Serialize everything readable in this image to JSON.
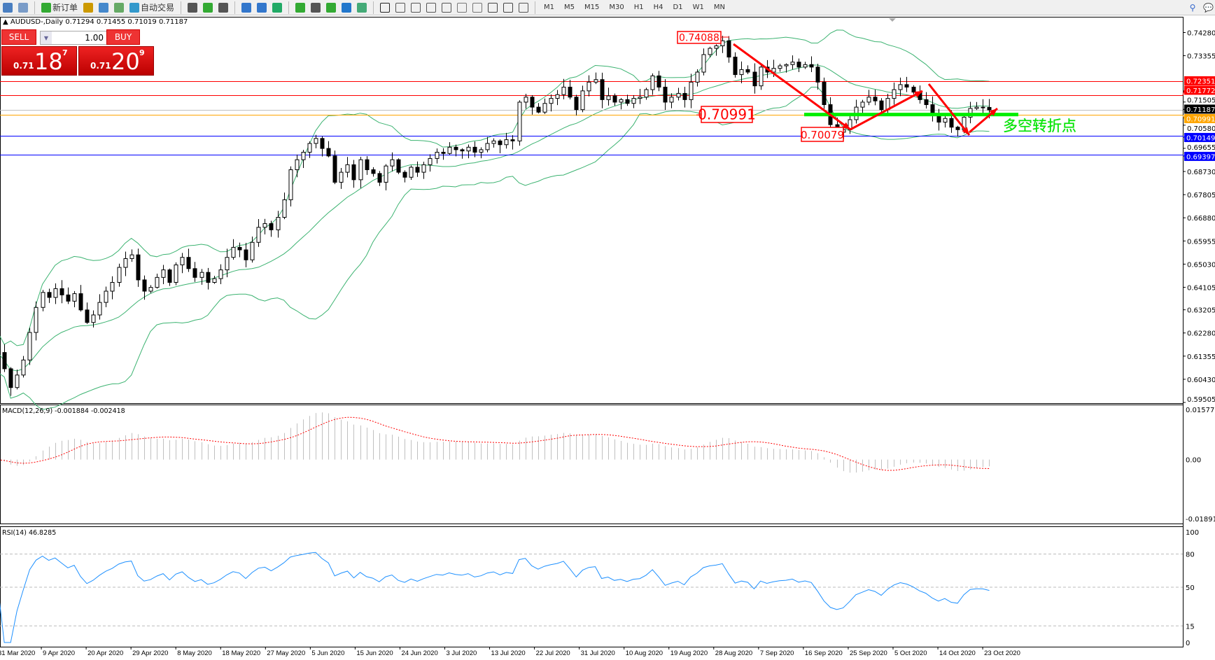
{
  "toolbar": {
    "new_order": "新订单",
    "auto_trading": "自动交易",
    "icons": [
      "new-chart-icon",
      "zoom-window-icon",
      "new-order-icon",
      "market-watch-icon",
      "navigator-icon",
      "signal-icon",
      "auto-trading-icon",
      "bar-chart-icon",
      "candlestick-icon",
      "line-chart-icon",
      "zoom-in-icon",
      "zoom-out-icon",
      "tile-windows-icon",
      "chart-shift-icon",
      "autoscroll-icon",
      "indicators-icon",
      "periods-icon",
      "templates-icon",
      "cursor-icon",
      "crosshair-icon",
      "vertical-line-icon",
      "horizontal-line-icon",
      "trendline-icon",
      "fibonacci-icon",
      "channel-icon",
      "text-icon",
      "text-label-icon",
      "arrow-icon"
    ],
    "timeframes": [
      "M1",
      "M5",
      "M15",
      "M30",
      "H1",
      "H4",
      "D1",
      "W1",
      "MN"
    ],
    "right_icons": [
      "search-icon",
      "chat-icon"
    ]
  },
  "chart": {
    "header": "AUDUSD-,Daily  0.71294 0.71455 0.71019 0.71187",
    "one_click": {
      "sell": "SELL",
      "buy": "BUY",
      "lot": "1.00",
      "sell_small": "0.71",
      "sell_big": "18",
      "sell_sup": "7",
      "buy_small": "0.71",
      "buy_big": "20",
      "buy_sup": "9"
    },
    "annotations": {
      "peak": "0.74088",
      "pivot": "0.70991",
      "low": "0.70079",
      "pivot_text": "多空转折点"
    },
    "colors": {
      "bull": "#ffffff",
      "bear": "#000000",
      "bands": "#3cb371",
      "resistance": "#ff0000",
      "support": "#0000ff",
      "pivot": "#ffa500",
      "bid": "#c0c0c0",
      "pivot_zone": "#00ee00",
      "arrow": "#ff0000",
      "rsi": "#1e90ff",
      "macd_hist": "#c0c0c0",
      "macd_signal": "#ff0000"
    }
  },
  "chart_data": {
    "type": "candlestick",
    "symbol": "AUDUSD-",
    "timeframe": "Daily",
    "close": [
      0.615,
      0.6085,
      0.601,
      0.606,
      0.612,
      0.623,
      0.633,
      0.639,
      0.637,
      0.6405,
      0.638,
      0.6355,
      0.6385,
      0.632,
      0.627,
      0.63,
      0.635,
      0.6395,
      0.643,
      0.649,
      0.6525,
      0.654,
      0.644,
      0.6395,
      0.641,
      0.645,
      0.648,
      0.643,
      0.65,
      0.653,
      0.6485,
      0.645,
      0.647,
      0.643,
      0.6445,
      0.648,
      0.653,
      0.657,
      0.656,
      0.652,
      0.659,
      0.665,
      0.6665,
      0.664,
      0.669,
      0.676,
      0.688,
      0.692,
      0.695,
      0.6985,
      0.7005,
      0.6965,
      0.6935,
      0.683,
      0.687,
      0.69,
      0.684,
      0.692,
      0.688,
      0.6865,
      0.683,
      0.6895,
      0.692,
      0.687,
      0.685,
      0.689,
      0.687,
      0.69,
      0.6925,
      0.695,
      0.6945,
      0.697,
      0.696,
      0.6955,
      0.697,
      0.695,
      0.696,
      0.6985,
      0.6995,
      0.698,
      0.7,
      0.6995,
      0.715,
      0.717,
      0.713,
      0.711,
      0.7145,
      0.7165,
      0.718,
      0.721,
      0.717,
      0.712,
      0.7195,
      0.723,
      0.724,
      0.716,
      0.7175,
      0.715,
      0.716,
      0.7145,
      0.7165,
      0.717,
      0.72,
      0.7255,
      0.721,
      0.715,
      0.717,
      0.7185,
      0.716,
      0.723,
      0.727,
      0.734,
      0.7365,
      0.7375,
      0.7395,
      0.733,
      0.726,
      0.728,
      0.727,
      0.7215,
      0.729,
      0.727,
      0.7285,
      0.7295,
      0.73,
      0.731,
      0.729,
      0.73,
      0.729,
      0.723,
      0.714,
      0.706,
      0.703,
      0.704,
      0.708,
      0.713,
      0.715,
      0.717,
      0.7155,
      0.712,
      0.7165,
      0.72,
      0.722,
      0.721,
      0.719,
      0.716,
      0.714,
      0.71,
      0.707,
      0.7085,
      0.705,
      0.704,
      0.709,
      0.7125,
      0.713,
      0.7129,
      0.7119
    ],
    "price_ticks": [
      "0.74280",
      "0.73355",
      "0.71505",
      "0.70580",
      "0.69655",
      "0.68730",
      "0.67805",
      "0.66880",
      "0.65955",
      "0.65030",
      "0.64105",
      "0.63205",
      "0.62280",
      "0.61355",
      "0.60430",
      "0.59505"
    ],
    "price_range": [
      0.59505,
      0.7428
    ],
    "levels": [
      {
        "price": "0.72351",
        "kind": "resistance"
      },
      {
        "price": "0.71772",
        "kind": "resistance"
      },
      {
        "price": "0.71187",
        "kind": "bid"
      },
      {
        "price": "0.70991",
        "kind": "pivot"
      },
      {
        "price": "0.70149",
        "kind": "support"
      },
      {
        "price": "0.69397",
        "kind": "support"
      }
    ],
    "dates": [
      "31 Mar 2020",
      "9 Apr 2020",
      "20 Apr 2020",
      "29 Apr 2020",
      "8 May 2020",
      "18 May 2020",
      "27 May 2020",
      "5 Jun 2020",
      "15 Jun 2020",
      "24 Jun 2020",
      "3 Jul 2020",
      "13 Jul 2020",
      "22 Jul 2020",
      "31 Jul 2020",
      "10 Aug 2020",
      "19 Aug 2020",
      "28 Aug 2020",
      "7 Sep 2020",
      "16 Sep 2020",
      "25 Sep 2020",
      "5 Oct 2020",
      "14 Oct 2020",
      "23 Oct 2020"
    ],
    "bollinger": {
      "period": 20,
      "deviation": 2
    },
    "macd": {
      "label": "MACD(12,26,9) -0.001884 -0.002418",
      "ticks": [
        "0.015776",
        "0.00",
        "-0.018912"
      ],
      "range": [
        -0.018912,
        0.015776
      ]
    },
    "rsi": {
      "label": "RSI(14) 46.8285",
      "ticks": [
        "100",
        "80",
        "50",
        "15",
        "0"
      ],
      "levels": [
        80,
        50,
        15
      ]
    }
  }
}
